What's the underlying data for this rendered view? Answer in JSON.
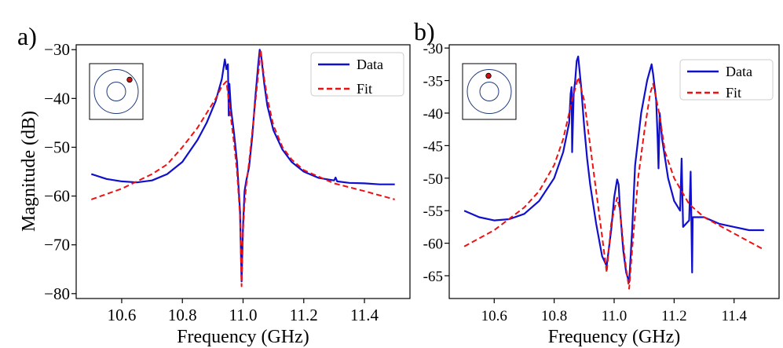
{
  "chart_data": [
    {
      "panel_label": "a)",
      "type": "line",
      "xlabel": "Frequency (GHz)",
      "ylabel": "Magnitude (dB)",
      "xlim": [
        10.45,
        11.55
      ],
      "ylim": [
        -81,
        -29
      ],
      "xticks": [
        10.6,
        10.8,
        11.0,
        11.2,
        11.4
      ],
      "xtick_labels": [
        "10.6",
        "10.8",
        "11.0",
        "11.2",
        "11.4"
      ],
      "yticks": [
        -80,
        -70,
        -60,
        -50,
        -40,
        -30
      ],
      "ytick_labels": [
        "−80",
        "−70",
        "−60",
        "−50",
        "−40",
        "−30"
      ],
      "legend": [
        "Data",
        "Fit"
      ],
      "legend_position": "top-right",
      "inset": "circle-with-red-dot-right",
      "colors": {
        "data": "#1010cc",
        "fit": "#ee1111",
        "dot": "#cc1111"
      },
      "series": [
        {
          "name": "Data",
          "style": "solid",
          "x": [
            10.5,
            10.55,
            10.6,
            10.65,
            10.7,
            10.75,
            10.8,
            10.85,
            10.88,
            10.91,
            10.93,
            10.94,
            10.945,
            10.95,
            10.953,
            10.955,
            10.96,
            10.97,
            10.98,
            10.99,
            10.995,
            11.0,
            11.005,
            11.01,
            11.02,
            11.03,
            11.04,
            11.05,
            11.055,
            11.06,
            11.07,
            11.08,
            11.1,
            11.13,
            11.16,
            11.2,
            11.25,
            11.3,
            11.305,
            11.31,
            11.35,
            11.4,
            11.45,
            11.5
          ],
          "values": [
            -55.5,
            -56.5,
            -57.0,
            -57.2,
            -56.8,
            -55.5,
            -53.0,
            -48.5,
            -45.0,
            -40.5,
            -36.0,
            -32.0,
            -34.0,
            -33.0,
            -43.5,
            -37.0,
            -42.0,
            -47.0,
            -53.0,
            -63.0,
            -77.5,
            -66.0,
            -59.0,
            -57.0,
            -54.0,
            -48.0,
            -40.0,
            -33.0,
            -30.0,
            -31.5,
            -37.0,
            -41.5,
            -46.5,
            -50.5,
            -53.0,
            -55.0,
            -56.3,
            -56.8,
            -56.2,
            -57.0,
            -57.3,
            -57.4,
            -57.6,
            -57.6
          ]
        },
        {
          "name": "Fit",
          "style": "dashed",
          "x": [
            10.5,
            10.6,
            10.7,
            10.75,
            10.8,
            10.85,
            10.88,
            10.91,
            10.93,
            10.945,
            10.96,
            10.97,
            10.98,
            10.99,
            10.995,
            11.0,
            11.005,
            11.01,
            11.02,
            11.03,
            11.04,
            11.05,
            11.058,
            11.07,
            11.08,
            11.1,
            11.13,
            11.16,
            11.2,
            11.3,
            11.4,
            11.5
          ],
          "values": [
            -60.7,
            -58.5,
            -55.5,
            -53.5,
            -50.0,
            -46.0,
            -43.0,
            -40.0,
            -37.5,
            -36.5,
            -44.0,
            -49.0,
            -55.0,
            -64.0,
            -78.5,
            -67.0,
            -61.5,
            -58.0,
            -53.0,
            -47.0,
            -41.0,
            -35.0,
            -30.0,
            -36.0,
            -40.0,
            -45.5,
            -50.0,
            -52.5,
            -54.7,
            -57.4,
            -59.0,
            -60.7
          ]
        }
      ]
    },
    {
      "panel_label": "b)",
      "type": "line",
      "xlabel": "Frequency (GHz)",
      "ylabel": "",
      "xlim": [
        10.45,
        11.55
      ],
      "ylim": [
        -68.5,
        -29.5
      ],
      "xticks": [
        10.6,
        10.8,
        11.0,
        11.2,
        11.4
      ],
      "xtick_labels": [
        "10.6",
        "10.8",
        "11.0",
        "11.2",
        "11.4"
      ],
      "yticks": [
        -65,
        -60,
        -55,
        -50,
        -45,
        -40,
        -35,
        -30
      ],
      "ytick_labels": [
        "-65",
        "-60",
        "-55",
        "-50",
        "-45",
        "-40",
        "-35",
        "-30"
      ],
      "legend": [
        "Data",
        "Fit"
      ],
      "legend_position": "top-right",
      "inset": "circle-with-red-dot-top",
      "colors": {
        "data": "#1010cc",
        "fit": "#ee1111",
        "dot": "#cc1111"
      },
      "series": [
        {
          "name": "Data",
          "style": "solid",
          "x": [
            10.5,
            10.55,
            10.6,
            10.65,
            10.7,
            10.75,
            10.8,
            10.83,
            10.85,
            10.855,
            10.858,
            10.86,
            10.865,
            10.87,
            10.875,
            10.88,
            10.89,
            10.9,
            10.91,
            10.92,
            10.94,
            10.96,
            10.975,
            10.99,
            11.0,
            11.01,
            11.015,
            11.02,
            11.03,
            11.04,
            11.05,
            11.06,
            11.07,
            11.09,
            11.11,
            11.125,
            11.13,
            11.14,
            11.145,
            11.148,
            11.152,
            11.16,
            11.18,
            11.2,
            11.22,
            11.225,
            11.23,
            11.24,
            11.25,
            11.255,
            11.26,
            11.262,
            11.3,
            11.35,
            11.4,
            11.45,
            11.5
          ],
          "values": [
            -55.0,
            -56.0,
            -56.5,
            -56.3,
            -55.5,
            -53.5,
            -50.0,
            -46.0,
            -41.5,
            -37.0,
            -36.0,
            -46.0,
            -37.0,
            -35.0,
            -32.0,
            -31.3,
            -36.0,
            -42.0,
            -47.0,
            -51.0,
            -57.0,
            -62.0,
            -63.5,
            -58.0,
            -53.0,
            -50.2,
            -51.0,
            -55.0,
            -61.0,
            -64.5,
            -66.0,
            -58.0,
            -48.0,
            -40.0,
            -35.0,
            -32.5,
            -34.0,
            -38.0,
            -44.0,
            -48.5,
            -40.0,
            -44.0,
            -50.0,
            -53.5,
            -55.0,
            -47.0,
            -57.5,
            -57.0,
            -56.5,
            -49.0,
            -64.5,
            -56.0,
            -56.0,
            -57.0,
            -57.5,
            -58.0,
            -58.0
          ]
        },
        {
          "name": "Fit",
          "style": "dashed",
          "x": [
            10.5,
            10.6,
            10.7,
            10.75,
            10.8,
            10.83,
            10.86,
            10.88,
            10.9,
            10.92,
            10.94,
            10.96,
            10.975,
            10.99,
            11.01,
            11.02,
            11.03,
            11.04,
            11.05,
            11.06,
            11.08,
            11.1,
            11.12,
            11.13,
            11.15,
            11.17,
            11.2,
            11.25,
            11.3,
            11.4,
            11.5
          ],
          "values": [
            -60.5,
            -58.0,
            -54.5,
            -52.0,
            -48.0,
            -44.0,
            -38.0,
            -34.5,
            -38.0,
            -45.0,
            -52.0,
            -59.0,
            -64.5,
            -57.0,
            -53.0,
            -55.0,
            -60.0,
            -64.0,
            -67.0,
            -61.0,
            -50.0,
            -43.0,
            -37.0,
            -35.5,
            -40.0,
            -46.0,
            -50.0,
            -54.0,
            -56.0,
            -58.5,
            -61.0
          ]
        }
      ]
    }
  ]
}
